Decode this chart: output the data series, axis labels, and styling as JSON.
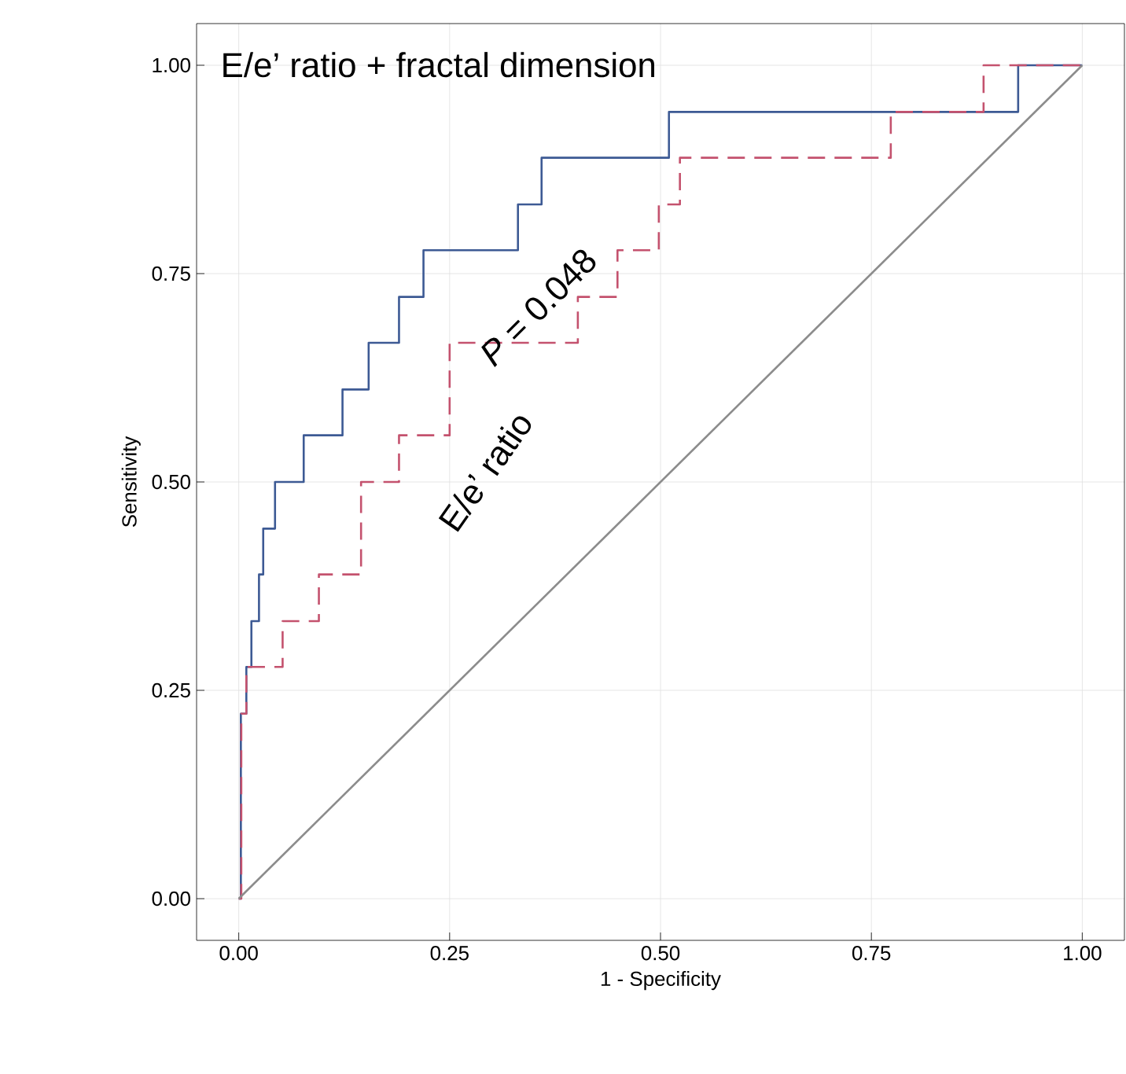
{
  "chart_data": {
    "type": "line",
    "xlabel": "1 - Specificity",
    "ylabel": "Sensitivity",
    "xlim": [
      -0.05,
      1.05
    ],
    "ylim": [
      -0.05,
      1.05
    ],
    "xticks": [
      {
        "value": 0,
        "label": "0.00"
      },
      {
        "value": 0.25,
        "label": "0.25"
      },
      {
        "value": 0.5,
        "label": "0.50"
      },
      {
        "value": 0.75,
        "label": "0.75"
      },
      {
        "value": 1,
        "label": "1.00"
      }
    ],
    "yticks": [
      {
        "value": 0,
        "label": "0.00"
      },
      {
        "value": 0.25,
        "label": "0.25"
      },
      {
        "value": 0.5,
        "label": "0.50"
      },
      {
        "value": 0.75,
        "label": "0.75"
      },
      {
        "value": 1,
        "label": "1.00"
      }
    ],
    "grid": true,
    "marker": "none",
    "annotations": [
      "*P* = 0.048"
    ],
    "series": [
      {
        "name": "E/e’ ratio + fractal dimension",
        "color": "#3d5a94",
        "line_style": "solid",
        "x": [
          0,
          0.0025,
          0.0025,
          0.009,
          0.009,
          0.015,
          0.015,
          0.024,
          0.024,
          0.029,
          0.029,
          0.043,
          0.043,
          0.077,
          0.077,
          0.123,
          0.123,
          0.154,
          0.154,
          0.19,
          0.19,
          0.219,
          0.219,
          0.331,
          0.331,
          0.359,
          0.359,
          0.51,
          0.51,
          0.924,
          0.924,
          1
        ],
        "values": [
          0,
          0,
          0.222,
          0.222,
          0.278,
          0.278,
          0.333,
          0.333,
          0.389,
          0.389,
          0.444,
          0.444,
          0.5,
          0.5,
          0.556,
          0.556,
          0.611,
          0.611,
          0.667,
          0.667,
          0.722,
          0.722,
          0.778,
          0.778,
          0.833,
          0.833,
          0.889,
          0.889,
          0.944,
          0.944,
          1,
          1
        ]
      },
      {
        "name": "E/e’ ratio",
        "color": "#c4526e",
        "line_style": "dashed",
        "x": [
          0,
          0.003,
          0.003,
          0.009,
          0.009,
          0.052,
          0.052,
          0.095,
          0.095,
          0.145,
          0.145,
          0.19,
          0.19,
          0.25,
          0.25,
          0.402,
          0.402,
          0.449,
          0.449,
          0.498,
          0.498,
          0.523,
          0.523,
          0.773,
          0.773,
          0.883,
          0.883,
          1
        ],
        "values": [
          0,
          0,
          0.222,
          0.222,
          0.278,
          0.278,
          0.333,
          0.333,
          0.389,
          0.389,
          0.5,
          0.5,
          0.556,
          0.556,
          0.667,
          0.667,
          0.722,
          0.722,
          0.778,
          0.778,
          0.833,
          0.833,
          0.889,
          0.889,
          0.944,
          0.944,
          1,
          1
        ]
      },
      {
        "type": "line",
        "color": "#8c8c8c",
        "line_style": "solid",
        "x": [
          0,
          1
        ],
        "values": [
          0,
          1
        ]
      }
    ]
  }
}
